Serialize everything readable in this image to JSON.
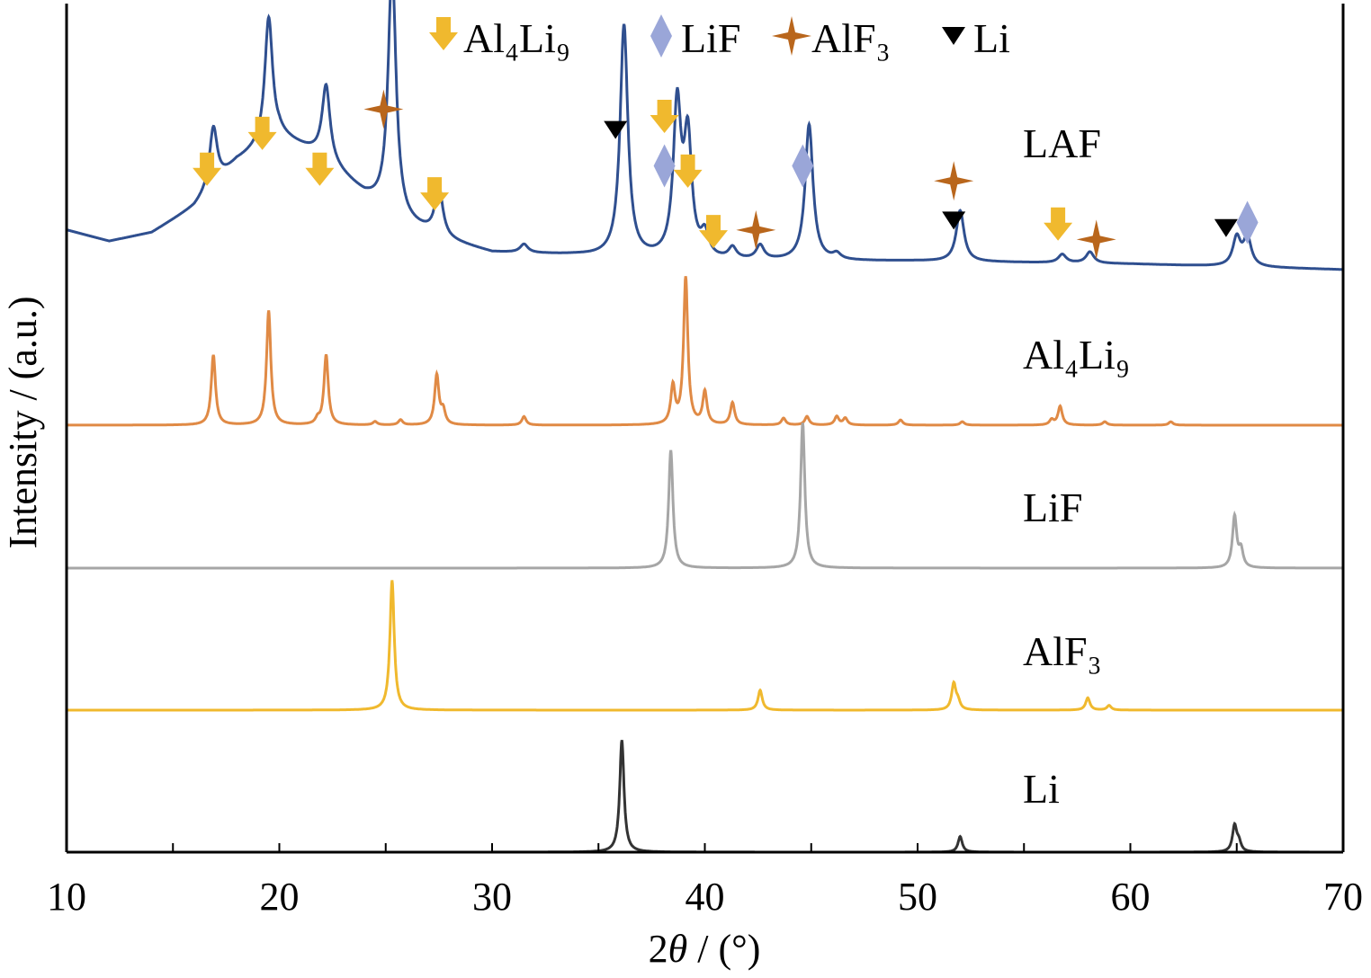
{
  "chart_data": {
    "type": "line",
    "title": "",
    "xlabel": {
      "pre": "2",
      "var": "θ",
      "post": " / (°)"
    },
    "ylabel": "Intensity / (a.u.)",
    "xlim": [
      10,
      70
    ],
    "x_ticks": [
      10,
      20,
      30,
      40,
      50,
      60,
      70
    ],
    "y_ticks_shown": false,
    "grid": false,
    "legend": {
      "placement": "top-center",
      "items": [
        {
          "marker": "down-arrow",
          "name": "Al₄Li₉",
          "color": "#f0b92e"
        },
        {
          "marker": "diamond",
          "name": "LiF",
          "color": "#9aa6d8"
        },
        {
          "marker": "star",
          "name": "AlF₃",
          "color": "#b9661c"
        },
        {
          "marker": "triangle-down",
          "name": "Li",
          "color": "#000000"
        }
      ]
    },
    "series": [
      {
        "name": "LAF",
        "color": "#2f4f8f",
        "background": [
          [
            10,
            0.14
          ],
          [
            12,
            0.1
          ],
          [
            14,
            0.13
          ],
          [
            16,
            0.22
          ],
          [
            18,
            0.38
          ],
          [
            20,
            0.47
          ],
          [
            22,
            0.4
          ],
          [
            24,
            0.26
          ],
          [
            26,
            0.16
          ],
          [
            28,
            0.1
          ],
          [
            30,
            0.06
          ],
          [
            34,
            0.05
          ],
          [
            36,
            0.04
          ],
          [
            40,
            0.03
          ],
          [
            44,
            0.03
          ],
          [
            50,
            0.03
          ],
          [
            60,
            0.02
          ],
          [
            70,
            0.0
          ]
        ],
        "peaks": [
          [
            16.9,
            0.21
          ],
          [
            19.5,
            0.44
          ],
          [
            22.2,
            0.26
          ],
          [
            25.3,
            0.88
          ],
          [
            27.5,
            0.17
          ],
          [
            31.5,
            0.03
          ],
          [
            36.2,
            0.82
          ],
          [
            38.7,
            0.53
          ],
          [
            39.2,
            0.41
          ],
          [
            40.0,
            0.08
          ],
          [
            41.3,
            0.04
          ],
          [
            42.6,
            0.05
          ],
          [
            44.9,
            0.48
          ],
          [
            46.2,
            0.02
          ],
          [
            52.0,
            0.18
          ],
          [
            56.8,
            0.03
          ],
          [
            58.1,
            0.04
          ],
          [
            65.0,
            0.1
          ],
          [
            65.5,
            0.1
          ]
        ]
      },
      {
        "name": "Al₄Li₉",
        "color": "#e08a45",
        "peaks": [
          [
            16.9,
            0.41
          ],
          [
            19.5,
            0.67
          ],
          [
            21.8,
            0.03
          ],
          [
            22.2,
            0.41
          ],
          [
            24.5,
            0.02
          ],
          [
            25.7,
            0.03
          ],
          [
            27.4,
            0.29
          ],
          [
            27.7,
            0.08
          ],
          [
            31.5,
            0.05
          ],
          [
            38.5,
            0.22
          ],
          [
            39.1,
            0.86
          ],
          [
            40.0,
            0.19
          ],
          [
            41.3,
            0.13
          ],
          [
            43.7,
            0.04
          ],
          [
            44.8,
            0.05
          ],
          [
            46.2,
            0.05
          ],
          [
            46.6,
            0.04
          ],
          [
            49.2,
            0.03
          ],
          [
            52.1,
            0.02
          ],
          [
            56.3,
            0.03
          ],
          [
            56.7,
            0.11
          ],
          [
            58.8,
            0.02
          ],
          [
            61.9,
            0.02
          ]
        ]
      },
      {
        "name": "LiF",
        "color": "#a6a6a6",
        "peaks": [
          [
            38.4,
            0.69
          ],
          [
            44.6,
            0.85
          ],
          [
            64.9,
            0.3
          ],
          [
            65.2,
            0.1
          ]
        ]
      },
      {
        "name": "AlF₃",
        "color": "#f0b92e",
        "peaks": [
          [
            25.3,
            0.85
          ],
          [
            42.6,
            0.13
          ],
          [
            51.7,
            0.17
          ],
          [
            51.9,
            0.05
          ],
          [
            58.0,
            0.08
          ],
          [
            59.0,
            0.03
          ]
        ]
      },
      {
        "name": "Li",
        "color": "#333333",
        "peaks": [
          [
            36.1,
            0.86
          ],
          [
            52.0,
            0.12
          ],
          [
            64.9,
            0.2
          ],
          [
            65.1,
            0.07
          ]
        ]
      }
    ],
    "annotations": [
      {
        "phase": "Al₄Li₉",
        "marker": "down-arrow",
        "x": 16.6,
        "y": 0.52
      },
      {
        "phase": "Al₄Li₉",
        "marker": "down-arrow",
        "x": 19.2,
        "y": 0.71
      },
      {
        "phase": "Al₄Li₉",
        "marker": "down-arrow",
        "x": 21.9,
        "y": 0.52
      },
      {
        "phase": "AlF₃",
        "marker": "star",
        "x": 24.9,
        "y": 0.85
      },
      {
        "phase": "Al₄Li₉",
        "marker": "down-arrow",
        "x": 27.3,
        "y": 0.39
      },
      {
        "phase": "Li",
        "marker": "triangle-down",
        "x": 35.8,
        "y": 0.74
      },
      {
        "phase": "Al₄Li₉",
        "marker": "down-arrow",
        "x": 38.1,
        "y": 0.8
      },
      {
        "phase": "LiF",
        "marker": "diamond",
        "x": 38.1,
        "y": 0.55
      },
      {
        "phase": "Al₄Li₉",
        "marker": "down-arrow",
        "x": 39.2,
        "y": 0.51
      },
      {
        "phase": "Al₄Li₉",
        "marker": "down-arrow",
        "x": 40.4,
        "y": 0.19
      },
      {
        "phase": "AlF₃",
        "marker": "star",
        "x": 42.4,
        "y": 0.21
      },
      {
        "phase": "LiF",
        "marker": "diamond",
        "x": 44.6,
        "y": 0.55
      },
      {
        "phase": "AlF₃",
        "marker": "star",
        "x": 51.7,
        "y": 0.47
      },
      {
        "phase": "Li",
        "marker": "triangle-down",
        "x": 51.7,
        "y": 0.26
      },
      {
        "phase": "Al₄Li₉",
        "marker": "down-arrow",
        "x": 56.6,
        "y": 0.23
      },
      {
        "phase": "AlF₃",
        "marker": "star",
        "x": 58.4,
        "y": 0.16
      },
      {
        "phase": "Li",
        "marker": "triangle-down",
        "x": 64.5,
        "y": 0.22
      },
      {
        "phase": "LiF",
        "marker": "diamond",
        "x": 65.5,
        "y": 0.25
      }
    ]
  }
}
